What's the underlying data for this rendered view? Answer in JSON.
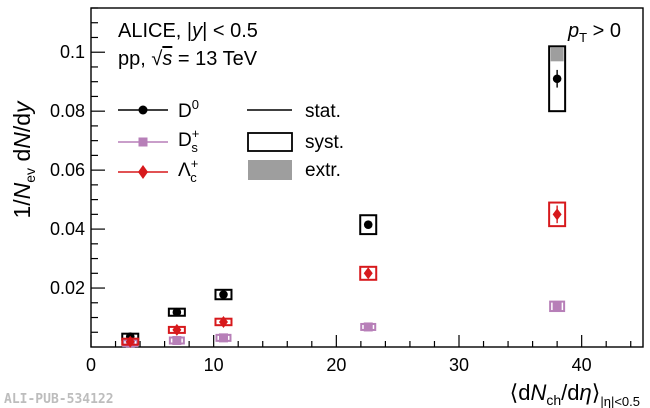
{
  "figure_id": "ALI-PUB-534122",
  "chart_data": {
    "type": "scatter",
    "header": {
      "line1": "ALICE, |y| < 0.5",
      "line2": "pp, √s = 13 TeV",
      "cut": "p_T > 0"
    },
    "xlabel": "⟨dN_ch/dη⟩_|η|<0.5",
    "ylabel": "1/N_ev dN/dy",
    "xlim": [
      0,
      45
    ],
    "ylim": [
      0,
      0.115
    ],
    "xticks": [
      0,
      10,
      20,
      30,
      40
    ],
    "xtick_labels": [
      "0",
      "10",
      "20",
      "30",
      "40"
    ],
    "yticks": [
      0.02,
      0.04,
      0.06,
      0.08,
      0.1
    ],
    "ytick_labels": [
      "0.02",
      "0.04",
      "0.06",
      "0.08",
      "0.1"
    ],
    "legend_uncertainty": [
      "stat.",
      "syst.",
      "extr."
    ],
    "series": [
      {
        "name": "D0",
        "color": "#000000",
        "marker": "circle",
        "x": [
          3.2,
          7.0,
          10.8,
          22.6,
          38.0
        ],
        "y": [
          0.0035,
          0.0118,
          0.0178,
          0.0415,
          0.091
        ],
        "stat": [
          0.0004,
          0.0005,
          0.0007,
          0.0012,
          0.003
        ],
        "syst": [
          0.0006,
          0.0012,
          0.0016,
          0.0032,
          0.011
        ]
      },
      {
        "name": "Ds+",
        "color": "#b77fb8",
        "marker": "square",
        "x": [
          3.2,
          7.0,
          10.8,
          22.6,
          38.0
        ],
        "y": [
          0.0013,
          0.0022,
          0.0031,
          0.0068,
          0.0138
        ],
        "stat": [
          0.0002,
          0.0002,
          0.0003,
          0.0004,
          0.0006
        ],
        "syst": [
          0.0003,
          0.0004,
          0.0005,
          0.0007,
          0.0016
        ]
      },
      {
        "name": "Λc+",
        "color": "#d7191c",
        "marker": "diamond",
        "x": [
          3.2,
          7.0,
          10.8,
          22.6,
          38.0
        ],
        "y": [
          0.0018,
          0.0058,
          0.0085,
          0.025,
          0.045
        ],
        "stat": [
          0.0004,
          0.0006,
          0.0008,
          0.0015,
          0.003
        ],
        "syst": [
          0.0004,
          0.0007,
          0.0011,
          0.0022,
          0.004
        ]
      }
    ]
  }
}
